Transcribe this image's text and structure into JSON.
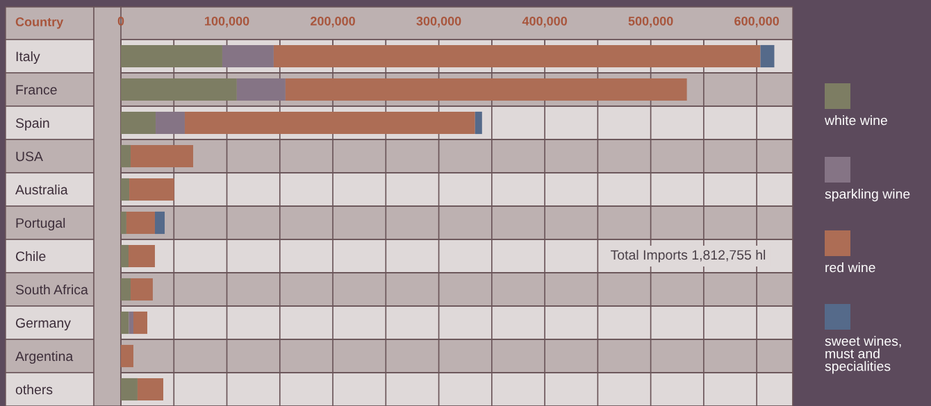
{
  "chart_data": {
    "type": "bar",
    "orientation": "horizontal",
    "stacked": true,
    "ylabel": "Country",
    "categories": [
      "Italy",
      "France",
      "Spain",
      "USA",
      "Australia",
      "Portugal",
      "Chile",
      "South Africa",
      "Germany",
      "Argentina",
      "others"
    ],
    "series": [
      {
        "name": "white wine",
        "color": "#7d7d63",
        "values": [
          95700,
          109400,
          32800,
          9200,
          7900,
          5200,
          7200,
          9200,
          7400,
          0,
          15700
        ]
      },
      {
        "name": "sparkling wine",
        "color": "#857485",
        "values": [
          48500,
          45900,
          27500,
          0,
          0,
          0,
          0,
          0,
          4400,
          0,
          0
        ]
      },
      {
        "name": "red wine",
        "color": "#ad6d55",
        "values": [
          459300,
          378800,
          273900,
          59000,
          42400,
          26900,
          24900,
          20900,
          13100,
          11800,
          24300
        ]
      },
      {
        "name": "sweet wines, must and specialities",
        "color": "#556a8a",
        "values": [
          13100,
          0,
          6600,
          0,
          0,
          9200,
          0,
          0,
          0,
          0,
          0
        ]
      }
    ],
    "xlim": [
      0,
      634000
    ],
    "xticks": [
      {
        "value": 0,
        "label": "0"
      },
      {
        "value": 50000,
        "label": null
      },
      {
        "value": 100000,
        "label": "100,000"
      },
      {
        "value": 150000,
        "label": null
      },
      {
        "value": 200000,
        "label": "200,000"
      },
      {
        "value": 250000,
        "label": null
      },
      {
        "value": 300000,
        "label": "300,000"
      },
      {
        "value": 350000,
        "label": null
      },
      {
        "value": 400000,
        "label": "400,000"
      },
      {
        "value": 450000,
        "label": null
      },
      {
        "value": 500000,
        "label": "500,000"
      },
      {
        "value": 550000,
        "label": null
      },
      {
        "value": 600000,
        "label": "600,000"
      }
    ],
    "annotations": [
      "Total Imports 1,812,755 hl"
    ],
    "grid": true,
    "legend": "right"
  }
}
